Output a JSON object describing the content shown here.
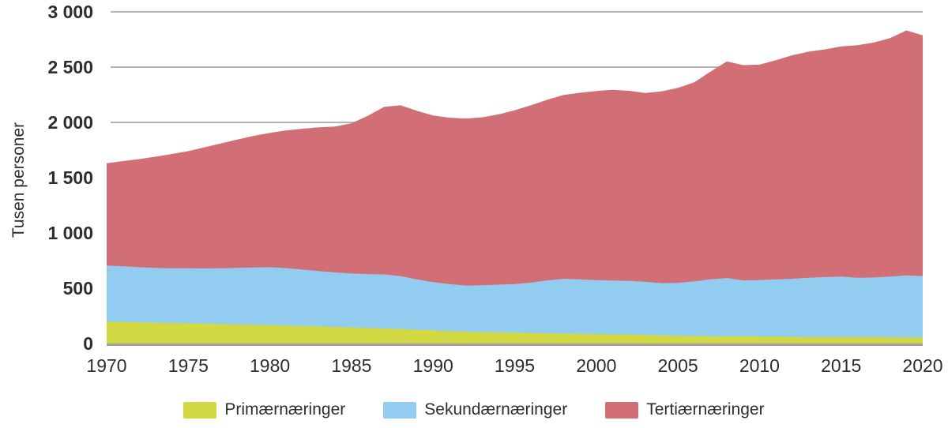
{
  "chart_data": {
    "type": "area",
    "stacked": true,
    "title": "",
    "xlabel": "",
    "ylabel": "Tusen personer",
    "ylim": [
      0,
      3000
    ],
    "grid": "horizontal",
    "legend_position": "bottom",
    "yticks": [
      {
        "v": 0,
        "label": "0"
      },
      {
        "v": 500,
        "label": "500"
      },
      {
        "v": 1000,
        "label": "1 000"
      },
      {
        "v": 1500,
        "label": "1 500"
      },
      {
        "v": 2000,
        "label": "2 000"
      },
      {
        "v": 2500,
        "label": "2 500"
      },
      {
        "v": 3000,
        "label": "3 000"
      }
    ],
    "xticks": [
      {
        "v": 1970,
        "label": "1970"
      },
      {
        "v": 1975,
        "label": "1975"
      },
      {
        "v": 1980,
        "label": "1980"
      },
      {
        "v": 1985,
        "label": "1985"
      },
      {
        "v": 1990,
        "label": "1990"
      },
      {
        "v": 1995,
        "label": "1995"
      },
      {
        "v": 2000,
        "label": "2000"
      },
      {
        "v": 2005,
        "label": "2005"
      },
      {
        "v": 2010,
        "label": "2010"
      },
      {
        "v": 2015,
        "label": "2015"
      },
      {
        "v": 2020,
        "label": "2020"
      }
    ],
    "years": [
      1970,
      1971,
      1972,
      1973,
      1974,
      1975,
      1976,
      1977,
      1978,
      1979,
      1980,
      1981,
      1982,
      1983,
      1984,
      1985,
      1986,
      1987,
      1988,
      1989,
      1990,
      1991,
      1992,
      1993,
      1994,
      1995,
      1996,
      1997,
      1998,
      1999,
      2000,
      2001,
      2002,
      2003,
      2004,
      2005,
      2006,
      2007,
      2008,
      2009,
      2010,
      2011,
      2012,
      2013,
      2014,
      2015,
      2016,
      2017,
      2018,
      2019,
      2020
    ],
    "series": [
      {
        "name": "Primærnæringer",
        "color": "#d2d841",
        "values": [
          200,
          196,
          192,
          188,
          185,
          183,
          179,
          176,
          173,
          169,
          166,
          162,
          158,
          155,
          150,
          145,
          140,
          136,
          131,
          125,
          120,
          113,
          107,
          102,
          100,
          98,
          95,
          92,
          90,
          87,
          85,
          83,
          80,
          77,
          74,
          70,
          68,
          66,
          65,
          64,
          63,
          62,
          61,
          60,
          60,
          60,
          59,
          58,
          57,
          56,
          55
        ]
      },
      {
        "name": "Sekundærnæringer",
        "color": "#92ccf0",
        "values": [
          505,
          502,
          498,
          496,
          496,
          497,
          500,
          505,
          511,
          519,
          524,
          520,
          510,
          500,
          493,
          488,
          488,
          489,
          479,
          455,
          436,
          425,
          417,
          425,
          432,
          440,
          456,
          479,
          496,
          494,
          488,
          487,
          486,
          481,
          472,
          478,
          494,
          514,
          527,
          507,
          510,
          518,
          525,
          535,
          541,
          546,
          535,
          539,
          549,
          560,
          555
        ]
      },
      {
        "name": "Tertiærnæringer",
        "color": "#d26f76",
        "values": [
          925,
          952,
          978,
          1006,
          1033,
          1060,
          1096,
          1129,
          1161,
          1190,
          1215,
          1246,
          1275,
          1300,
          1319,
          1359,
          1432,
          1515,
          1545,
          1525,
          1506,
          1505,
          1511,
          1519,
          1540,
          1572,
          1604,
          1634,
          1662,
          1687,
          1711,
          1725,
          1720,
          1708,
          1734,
          1764,
          1800,
          1880,
          1960,
          1947,
          1949,
          1982,
          2021,
          2045,
          2059,
          2082,
          2104,
          2125,
          2156,
          2216,
          2178
        ]
      }
    ],
    "colors": {
      "gridline": "#9a9a9a",
      "axis_line": "#a0a0a0",
      "tick_text": "#2e2e2e"
    }
  }
}
